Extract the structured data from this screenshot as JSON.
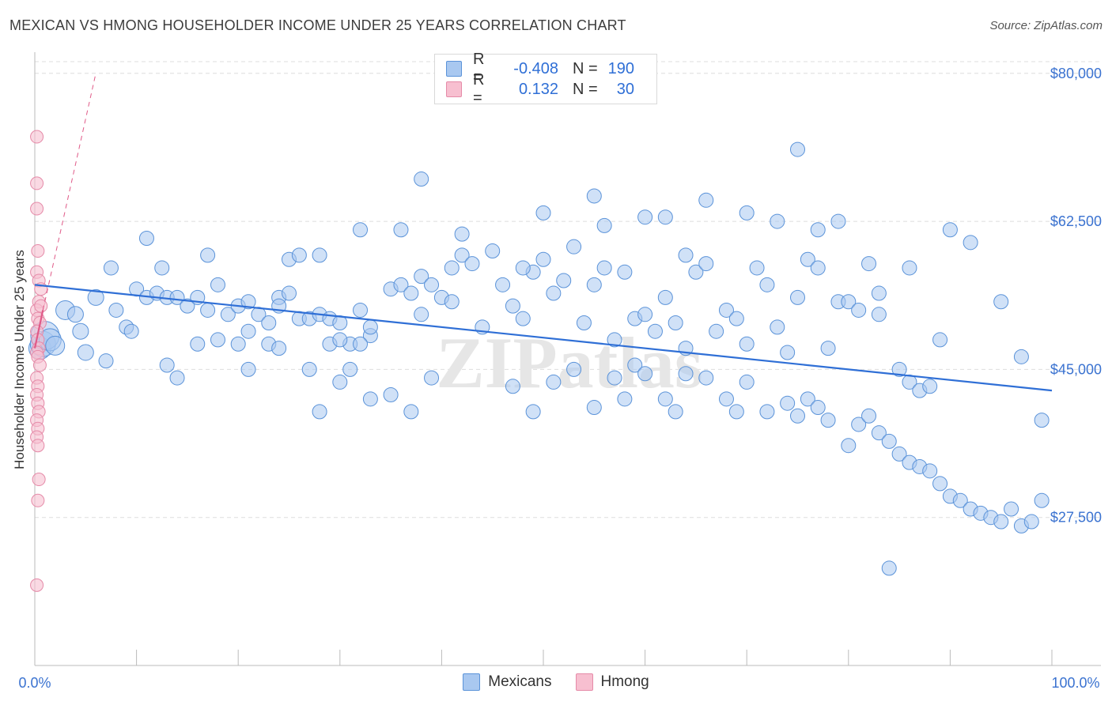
{
  "header": {
    "title": "MEXICAN VS HMONG HOUSEHOLDER INCOME UNDER 25 YEARS CORRELATION CHART",
    "source": "Source: ZipAtlas.com"
  },
  "legend": {
    "rows": [
      {
        "r_label": "R =",
        "r_value": "-0.408",
        "n_label": "N =",
        "n_value": "190"
      },
      {
        "r_label": "R =",
        "r_value": "0.132",
        "n_label": "N =",
        "n_value": "30"
      }
    ]
  },
  "colors": {
    "mexicans_fill": "#a9c8f0",
    "mexicans_stroke": "#5b93d9",
    "mexicans_line": "#2f6fd6",
    "hmong_fill": "#f7bfd0",
    "hmong_stroke": "#e58aa8",
    "hmong_line": "#e05a88",
    "tick_label": "#3a72d0",
    "grid": "#dddddd"
  },
  "chart_data": {
    "type": "scatter",
    "title": "MEXICAN VS HMONG HOUSEHOLDER INCOME UNDER 25 YEARS CORRELATION CHART",
    "xlabel": "",
    "ylabel": "Householder Income Under 25 years",
    "xlim": [
      0,
      100
    ],
    "ylim": [
      10000,
      82500
    ],
    "x_tick_labels": [
      "0.0%",
      "100.0%"
    ],
    "y_ticks": [
      {
        "value": 80000,
        "label": "$80,000"
      },
      {
        "value": 62500,
        "label": "$62,500"
      },
      {
        "value": 45000,
        "label": "$45,000"
      },
      {
        "value": 27500,
        "label": "$27,500"
      }
    ],
    "grid": true,
    "legend_position": "top-center",
    "watermark": "ZIPatlas",
    "series": [
      {
        "name": "Mexicans",
        "trend": {
          "x": [
            0,
            100
          ],
          "y": [
            55000,
            42500
          ]
        },
        "points": [
          [
            0.5,
            47500,
            14
          ],
          [
            0.8,
            48000,
            16
          ],
          [
            1.0,
            49000,
            18
          ],
          [
            1.5,
            48500,
            14
          ],
          [
            2,
            47800,
            12
          ],
          [
            3,
            52000,
            12
          ],
          [
            4,
            51500,
            10
          ],
          [
            5,
            47000,
            10
          ],
          [
            4.5,
            49500,
            10
          ],
          [
            6,
            53500,
            10
          ],
          [
            7,
            46000,
            9
          ],
          [
            8,
            52000,
            9
          ],
          [
            9,
            50000,
            9
          ],
          [
            10,
            54500,
            9
          ],
          [
            11,
            53500,
            9
          ],
          [
            12,
            54000,
            9
          ],
          [
            13,
            53500,
            9
          ],
          [
            7.5,
            57000,
            9
          ],
          [
            9.5,
            49500,
            9
          ],
          [
            12.5,
            57000,
            9
          ],
          [
            14,
            53500,
            9
          ],
          [
            15,
            52500,
            9
          ],
          [
            16,
            53500,
            9
          ],
          [
            17,
            52000,
            9
          ],
          [
            18,
            55000,
            9
          ],
          [
            19,
            51500,
            9
          ],
          [
            20,
            52500,
            9
          ],
          [
            21,
            49500,
            9
          ],
          [
            22,
            51500,
            9
          ],
          [
            23,
            50500,
            9
          ],
          [
            24,
            53500,
            9
          ],
          [
            25,
            54000,
            9
          ],
          [
            26,
            51000,
            9
          ],
          [
            27,
            51000,
            9
          ],
          [
            28,
            51500,
            9
          ],
          [
            29,
            51000,
            9
          ],
          [
            30,
            50500,
            9
          ],
          [
            31,
            48000,
            9
          ],
          [
            32,
            52000,
            9
          ],
          [
            33,
            49000,
            9
          ],
          [
            13,
            45500,
            9
          ],
          [
            14,
            44000,
            9
          ],
          [
            16,
            48000,
            9
          ],
          [
            18,
            48500,
            9
          ],
          [
            20,
            48000,
            9
          ],
          [
            21,
            45000,
            9
          ],
          [
            23,
            48000,
            9
          ],
          [
            24,
            47500,
            9
          ],
          [
            27,
            45000,
            9
          ],
          [
            29,
            48000,
            9
          ],
          [
            30,
            48500,
            9
          ],
          [
            32,
            48000,
            9
          ],
          [
            33,
            50000,
            9
          ],
          [
            35,
            54500,
            9
          ],
          [
            36,
            55000,
            9
          ],
          [
            37,
            54000,
            9
          ],
          [
            38,
            56000,
            9
          ],
          [
            38,
            51500,
            9
          ],
          [
            39,
            55000,
            9
          ],
          [
            40,
            53500,
            9
          ],
          [
            41,
            57000,
            9
          ],
          [
            41,
            53000,
            9
          ],
          [
            42,
            58500,
            9
          ],
          [
            43,
            57500,
            9
          ],
          [
            44,
            50000,
            9
          ],
          [
            45,
            59000,
            9
          ],
          [
            46,
            55000,
            9
          ],
          [
            47,
            52500,
            9
          ],
          [
            48,
            51000,
            9
          ],
          [
            49,
            56500,
            9
          ],
          [
            50,
            58000,
            9
          ],
          [
            51,
            54000,
            9
          ],
          [
            52,
            55500,
            9
          ],
          [
            53,
            59500,
            9
          ],
          [
            54,
            50500,
            9
          ],
          [
            55,
            55000,
            9
          ],
          [
            56,
            57000,
            9
          ],
          [
            57,
            48500,
            9
          ],
          [
            58,
            56500,
            9
          ],
          [
            59,
            51000,
            9
          ],
          [
            60,
            51500,
            9
          ],
          [
            61,
            49500,
            9
          ],
          [
            62,
            53500,
            9
          ],
          [
            63,
            50500,
            9
          ],
          [
            64,
            58500,
            9
          ],
          [
            64,
            47500,
            9
          ],
          [
            65,
            56500,
            9
          ],
          [
            66,
            57500,
            9
          ],
          [
            67,
            49500,
            9
          ],
          [
            68,
            52000,
            9
          ],
          [
            69,
            51000,
            9
          ],
          [
            70,
            48000,
            9
          ],
          [
            71,
            57000,
            9
          ],
          [
            72,
            55000,
            9
          ],
          [
            73,
            50000,
            9
          ],
          [
            74,
            47000,
            9
          ],
          [
            75,
            53500,
            9
          ],
          [
            76,
            58000,
            9
          ],
          [
            77,
            57000,
            9
          ],
          [
            78,
            47500,
            9
          ],
          [
            79,
            53000,
            9
          ],
          [
            80,
            53000,
            9
          ],
          [
            81,
            52000,
            9
          ],
          [
            82,
            57500,
            9
          ],
          [
            83,
            51500,
            9
          ],
          [
            85,
            45000,
            9
          ],
          [
            86,
            43500,
            9
          ],
          [
            87,
            42500,
            9
          ],
          [
            88,
            43000,
            9
          ],
          [
            89,
            48500,
            9
          ],
          [
            47,
            43000,
            9
          ],
          [
            49,
            40000,
            9
          ],
          [
            51,
            43500,
            9
          ],
          [
            53,
            45000,
            9
          ],
          [
            55,
            40500,
            9
          ],
          [
            57,
            44000,
            9
          ],
          [
            58,
            41500,
            9
          ],
          [
            59,
            45500,
            9
          ],
          [
            60,
            44500,
            9
          ],
          [
            62,
            41500,
            9
          ],
          [
            63,
            40000,
            9
          ],
          [
            64,
            44500,
            9
          ],
          [
            66,
            44000,
            9
          ],
          [
            68,
            41500,
            9
          ],
          [
            69,
            40000,
            9
          ],
          [
            70,
            43500,
            9
          ],
          [
            72,
            40000,
            9
          ],
          [
            74,
            41000,
            9
          ],
          [
            75,
            39500,
            9
          ],
          [
            76,
            41500,
            9
          ],
          [
            77,
            40500,
            9
          ],
          [
            78,
            39000,
            9
          ],
          [
            80,
            36000,
            9
          ],
          [
            81,
            38500,
            9
          ],
          [
            82,
            39500,
            9
          ],
          [
            83,
            37500,
            9
          ],
          [
            84,
            36500,
            9
          ],
          [
            85,
            35000,
            9
          ],
          [
            86,
            34000,
            9
          ],
          [
            87,
            33500,
            9
          ],
          [
            88,
            33000,
            9
          ],
          [
            89,
            31500,
            9
          ],
          [
            90,
            30000,
            9
          ],
          [
            91,
            29500,
            9
          ],
          [
            92,
            28500,
            9
          ],
          [
            93,
            28000,
            9
          ],
          [
            94,
            27500,
            9
          ],
          [
            95,
            27000,
            9
          ],
          [
            96,
            28500,
            9
          ],
          [
            97,
            26500,
            9
          ],
          [
            98,
            27000,
            9
          ],
          [
            99,
            29500,
            9
          ],
          [
            84,
            21500,
            9
          ],
          [
            37,
            40000,
            9
          ],
          [
            39,
            44000,
            9
          ],
          [
            35,
            42000,
            9
          ],
          [
            33,
            41500,
            9
          ],
          [
            31,
            45000,
            9
          ],
          [
            30,
            43500,
            9
          ],
          [
            28,
            40000,
            9
          ],
          [
            11,
            60500,
            9
          ],
          [
            17,
            58500,
            9
          ],
          [
            21,
            53000,
            9
          ],
          [
            25,
            58000,
            9
          ],
          [
            28,
            58500,
            9
          ],
          [
            32,
            61500,
            9
          ],
          [
            36,
            61500,
            9
          ],
          [
            38,
            67500,
            9
          ],
          [
            42,
            61000,
            9
          ],
          [
            48,
            57000,
            9
          ],
          [
            50,
            63500,
            9
          ],
          [
            55,
            65500,
            9
          ],
          [
            56,
            62000,
            9
          ],
          [
            60,
            63000,
            9
          ],
          [
            62,
            63000,
            9
          ],
          [
            66,
            65000,
            9
          ],
          [
            70,
            63500,
            9
          ],
          [
            73,
            62500,
            9
          ],
          [
            75,
            71000,
            9
          ],
          [
            77,
            61500,
            9
          ],
          [
            79,
            62500,
            9
          ],
          [
            83,
            54000,
            9
          ],
          [
            86,
            57000,
            9
          ],
          [
            90,
            61500,
            9
          ],
          [
            92,
            60000,
            9
          ],
          [
            95,
            53000,
            9
          ],
          [
            97,
            46500,
            9
          ],
          [
            99,
            39000,
            9
          ],
          [
            24,
            52500,
            9
          ],
          [
            26,
            58500,
            9
          ]
        ]
      },
      {
        "name": "Hmong",
        "trend": {
          "x": [
            0,
            6
          ],
          "y": [
            47500,
            80000
          ]
        },
        "points": [
          [
            0.2,
            72500,
            8
          ],
          [
            0.2,
            67000,
            8
          ],
          [
            0.2,
            64000,
            8
          ],
          [
            0.3,
            59000,
            8
          ],
          [
            0.2,
            56500,
            8
          ],
          [
            0.4,
            55500,
            8
          ],
          [
            0.6,
            54500,
            8
          ],
          [
            0.4,
            53000,
            8
          ],
          [
            0.2,
            52000,
            8
          ],
          [
            0.3,
            51000,
            8
          ],
          [
            0.5,
            50500,
            8
          ],
          [
            0.2,
            49500,
            8
          ],
          [
            0.3,
            48500,
            8
          ],
          [
            0.4,
            47500,
            8
          ],
          [
            0.2,
            47000,
            8
          ],
          [
            0.3,
            46500,
            8
          ],
          [
            0.5,
            45500,
            8
          ],
          [
            0.2,
            44000,
            8
          ],
          [
            0.3,
            43000,
            8
          ],
          [
            0.2,
            42000,
            8
          ],
          [
            0.3,
            41000,
            8
          ],
          [
            0.4,
            40000,
            8
          ],
          [
            0.2,
            39000,
            8
          ],
          [
            0.3,
            38000,
            8
          ],
          [
            0.2,
            37000,
            8
          ],
          [
            0.3,
            36000,
            8
          ],
          [
            0.4,
            32000,
            8
          ],
          [
            0.3,
            29500,
            8
          ],
          [
            0.2,
            19500,
            8
          ],
          [
            0.6,
            52500,
            8
          ]
        ]
      }
    ]
  }
}
